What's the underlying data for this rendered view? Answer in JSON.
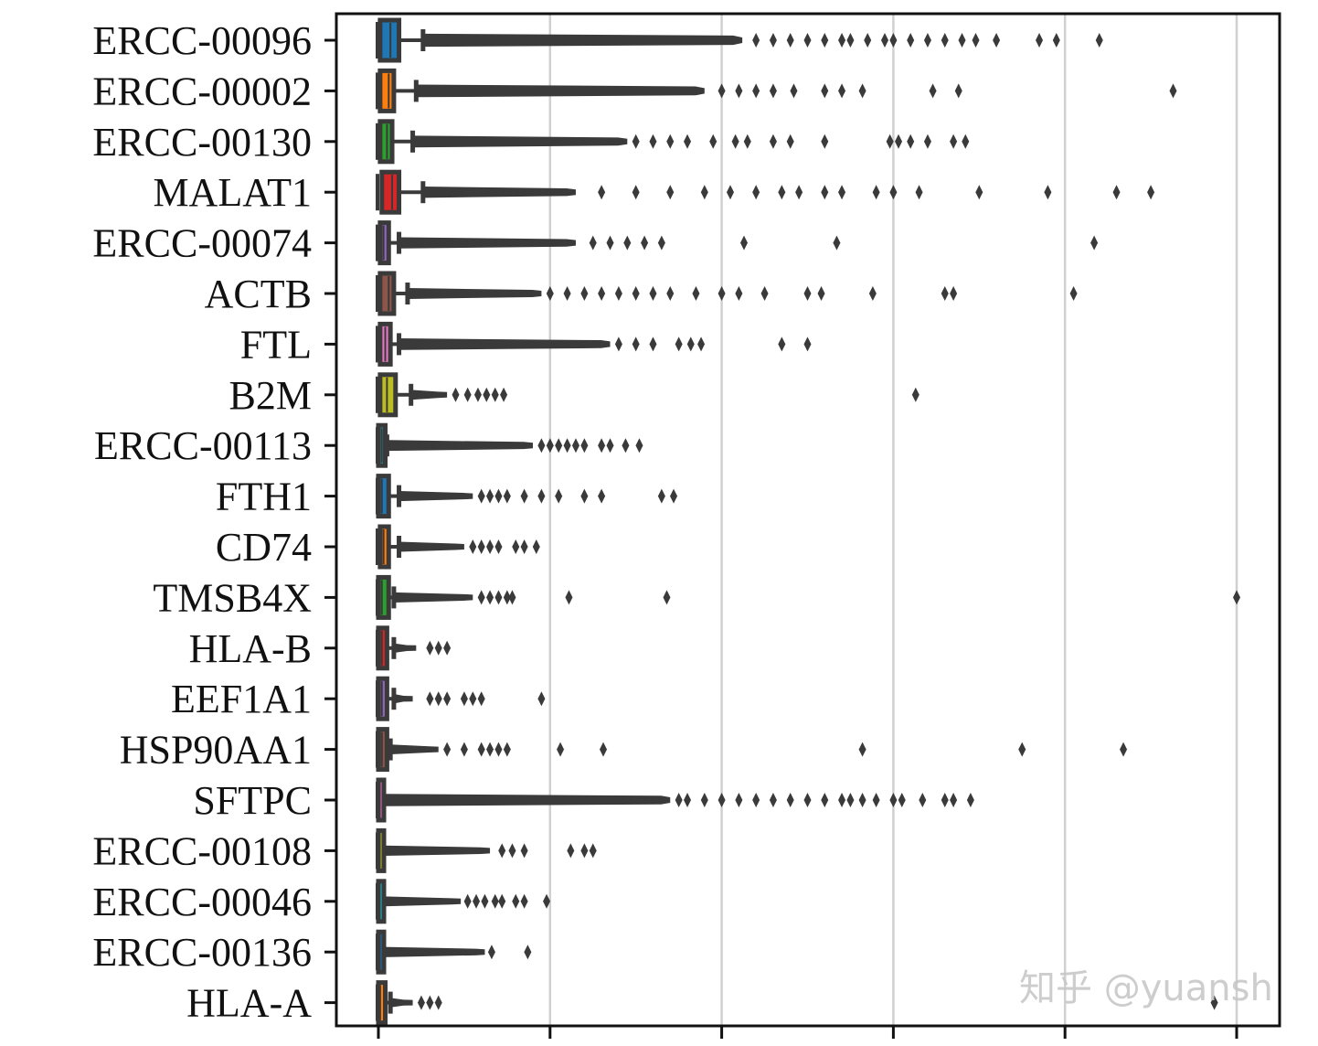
{
  "chart_data": {
    "type": "boxplot-horizontal",
    "title": "",
    "xlabel": "",
    "ylabel": "",
    "x_tick_labels_visible": false,
    "x_ticks_units": [
      0,
      1,
      2,
      3,
      4,
      5
    ],
    "xlim": [
      -0.25,
      5.25
    ],
    "grid": "vertical",
    "legend": null,
    "categories": [
      "ERCC-00096",
      "ERCC-00002",
      "ERCC-00130",
      "MALAT1",
      "ERCC-00074",
      "ACTB",
      "FTL",
      "B2M",
      "ERCC-00113",
      "FTH1",
      "CD74",
      "TMSB4X",
      "HLA-B",
      "EEF1A1",
      "HSP90AA1",
      "SFTPC",
      "ERCC-00108",
      "ERCC-00046",
      "ERCC-00136",
      "HLA-A"
    ],
    "boxes": [
      {
        "name": "ERCC-00096",
        "color": "#1f77b4",
        "q1": 0.01,
        "median": 0.07,
        "q3": 0.12,
        "whisker_hi": 0.26,
        "dense_to": 2.12,
        "outliers": [
          2.2,
          2.3,
          2.4,
          2.5,
          2.6,
          2.7,
          2.75,
          2.85,
          2.95,
          3.0,
          3.1,
          3.2,
          3.3,
          3.4,
          3.48,
          3.6,
          3.85,
          3.95,
          4.2
        ]
      },
      {
        "name": "ERCC-00002",
        "color": "#ff7f0e",
        "q1": 0.01,
        "median": 0.06,
        "q3": 0.09,
        "whisker_hi": 0.22,
        "dense_to": 1.9,
        "outliers": [
          2.0,
          2.1,
          2.2,
          2.3,
          2.42,
          2.6,
          2.7,
          2.82,
          3.23,
          3.38,
          4.63
        ]
      },
      {
        "name": "ERCC-00130",
        "color": "#2ca02c",
        "q1": 0.01,
        "median": 0.05,
        "q3": 0.08,
        "whisker_hi": 0.2,
        "dense_to": 1.45,
        "outliers": [
          1.5,
          1.6,
          1.7,
          1.8,
          1.95,
          2.08,
          2.15,
          2.3,
          2.4,
          2.6,
          2.98,
          3.03,
          3.1,
          3.2,
          3.35,
          3.42
        ]
      },
      {
        "name": "MALAT1",
        "color": "#d62728",
        "q1": 0.02,
        "median": 0.08,
        "q3": 0.12,
        "whisker_hi": 0.26,
        "dense_to": 1.15,
        "outliers": [
          1.3,
          1.5,
          1.7,
          1.9,
          2.05,
          2.2,
          2.35,
          2.45,
          2.6,
          2.7,
          2.9,
          3.0,
          3.15,
          3.5,
          3.9,
          4.3,
          4.5
        ]
      },
      {
        "name": "ERCC-00074",
        "color": "#9467bd",
        "q1": 0.01,
        "median": 0.03,
        "q3": 0.06,
        "whisker_hi": 0.12,
        "dense_to": 1.15,
        "outliers": [
          1.25,
          1.35,
          1.45,
          1.55,
          1.65,
          2.13,
          2.67,
          4.17
        ]
      },
      {
        "name": "ACTB",
        "color": "#8c564b",
        "q1": 0.01,
        "median": 0.06,
        "q3": 0.09,
        "whisker_hi": 0.17,
        "dense_to": 0.95,
        "outliers": [
          1.0,
          1.1,
          1.2,
          1.3,
          1.4,
          1.5,
          1.6,
          1.7,
          1.85,
          2.0,
          2.1,
          2.25,
          2.5,
          2.58,
          2.88,
          3.3,
          3.35,
          4.05
        ]
      },
      {
        "name": "FTL",
        "color": "#e377c2",
        "q1": 0.01,
        "median": 0.04,
        "q3": 0.07,
        "whisker_hi": 0.12,
        "dense_to": 1.35,
        "outliers": [
          1.4,
          1.5,
          1.6,
          1.75,
          1.82,
          1.88,
          2.35,
          2.5
        ]
      },
      {
        "name": "B2M",
        "color": "#bcbd22",
        "q1": 0.01,
        "median": 0.05,
        "q3": 0.1,
        "whisker_hi": 0.19,
        "dense_to": 0.4,
        "outliers": [
          0.45,
          0.52,
          0.58,
          0.63,
          0.68,
          0.73,
          3.13
        ]
      },
      {
        "name": "ERCC-00113",
        "color": "#17becf",
        "q1": 0.0,
        "median": 0.02,
        "q3": 0.04,
        "whisker_hi": 0.05,
        "dense_to": 0.9,
        "outliers": [
          0.95,
          1.0,
          1.05,
          1.1,
          1.15,
          1.2,
          1.3,
          1.35,
          1.44,
          1.52
        ]
      },
      {
        "name": "FTH1",
        "color": "#1f77b4",
        "q1": 0.0,
        "median": 0.02,
        "q3": 0.06,
        "whisker_hi": 0.12,
        "dense_to": 0.55,
        "outliers": [
          0.6,
          0.65,
          0.7,
          0.75,
          0.85,
          0.95,
          1.05,
          1.2,
          1.3,
          1.65,
          1.72
        ]
      },
      {
        "name": "CD74",
        "color": "#ff7f0e",
        "q1": 0.01,
        "median": 0.03,
        "q3": 0.06,
        "whisker_hi": 0.12,
        "dense_to": 0.5,
        "outliers": [
          0.55,
          0.6,
          0.65,
          0.7,
          0.8,
          0.85,
          0.92
        ]
      },
      {
        "name": "TMSB4X",
        "color": "#2ca02c",
        "q1": 0.0,
        "median": 0.02,
        "q3": 0.06,
        "whisker_hi": 0.09,
        "dense_to": 0.55,
        "outliers": [
          0.6,
          0.65,
          0.7,
          0.75,
          0.78,
          1.11,
          1.68,
          5.0
        ]
      },
      {
        "name": "HLA-B",
        "color": "#d62728",
        "q1": 0.0,
        "median": 0.02,
        "q3": 0.05,
        "whisker_hi": 0.09,
        "dense_to": 0.22,
        "outliers": [
          0.3,
          0.35,
          0.4
        ]
      },
      {
        "name": "EEF1A1",
        "color": "#9467bd",
        "q1": 0.0,
        "median": 0.02,
        "q3": 0.05,
        "whisker_hi": 0.09,
        "dense_to": 0.2,
        "outliers": [
          0.3,
          0.35,
          0.4,
          0.5,
          0.55,
          0.6,
          0.95
        ]
      },
      {
        "name": "HSP90AA1",
        "color": "#8c564b",
        "q1": 0.0,
        "median": 0.02,
        "q3": 0.05,
        "whisker_hi": 0.07,
        "dense_to": 0.35,
        "outliers": [
          0.4,
          0.5,
          0.6,
          0.65,
          0.7,
          0.75,
          1.06,
          1.31,
          2.82,
          3.75,
          4.34
        ]
      },
      {
        "name": "SFTPC",
        "color": "#e377c2",
        "q1": 0.0,
        "median": 0.0,
        "q3": 0.01,
        "whisker_hi": 0.02,
        "dense_to": 1.7,
        "outliers": [
          1.75,
          1.8,
          1.9,
          2.0,
          2.1,
          2.2,
          2.3,
          2.4,
          2.5,
          2.6,
          2.7,
          2.75,
          2.82,
          2.9,
          3.0,
          3.05,
          3.17,
          3.3,
          3.35,
          3.45
        ]
      },
      {
        "name": "ERCC-00108",
        "color": "#bcbd22",
        "q1": 0.0,
        "median": 0.0,
        "q3": 0.02,
        "whisker_hi": 0.03,
        "dense_to": 0.65,
        "outliers": [
          0.72,
          0.78,
          0.85,
          1.12,
          1.2,
          1.25
        ]
      },
      {
        "name": "ERCC-00046",
        "color": "#17becf",
        "q1": 0.0,
        "median": 0.0,
        "q3": 0.02,
        "whisker_hi": 0.03,
        "dense_to": 0.48,
        "outliers": [
          0.52,
          0.57,
          0.62,
          0.68,
          0.72,
          0.8,
          0.85,
          0.98
        ]
      },
      {
        "name": "ERCC-00136",
        "color": "#1f77b4",
        "q1": 0.0,
        "median": 0.0,
        "q3": 0.02,
        "whisker_hi": 0.03,
        "dense_to": 0.62,
        "outliers": [
          0.66,
          0.87
        ]
      },
      {
        "name": "HLA-A",
        "color": "#ff7f0e",
        "q1": 0.0,
        "median": 0.01,
        "q3": 0.04,
        "whisker_hi": 0.07,
        "dense_to": 0.2,
        "outliers": [
          0.25,
          0.3,
          0.35,
          4.87
        ]
      }
    ]
  },
  "watermark": "知乎 @yuansh"
}
